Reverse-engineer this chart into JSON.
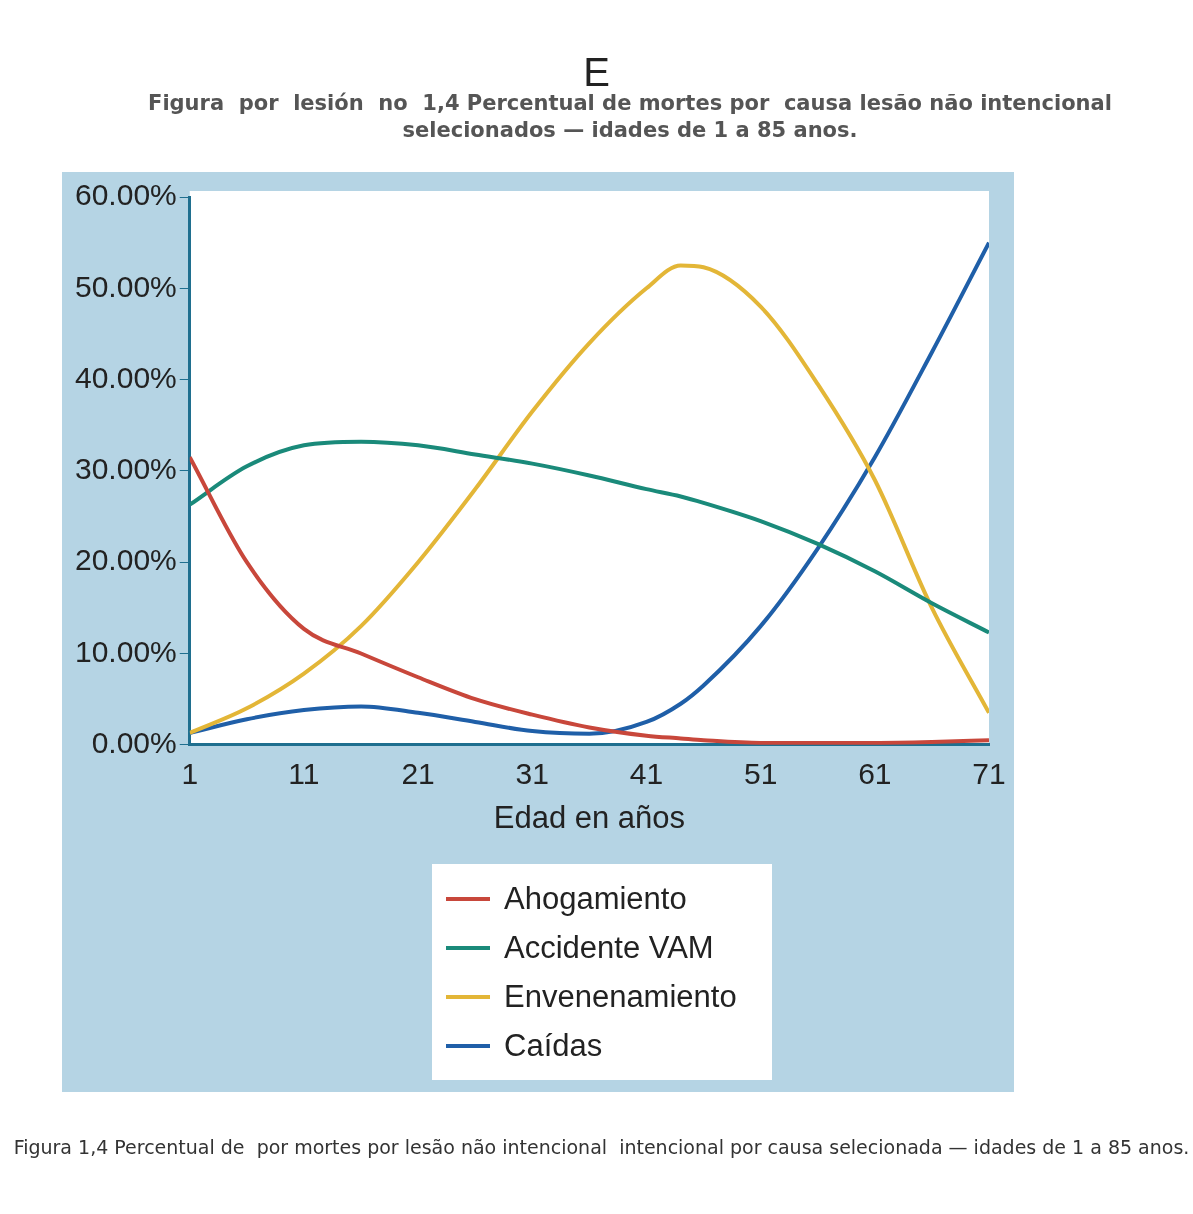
{
  "chart_data": {
    "type": "line",
    "title": "E",
    "subtitle": "Figura  por  lesión  no  1,4 Percentual de mortes por  causa lesão não intencional selecionados — idades de 1 a 85 anos.",
    "xlabel": "Edad en años",
    "annotations": [
      "Figura 1,4 Percentual de  por mortes por lesão não intencional  intencional por causa selecionada — idades de 1 a 85 anos."
    ],
    "x": [
      1,
      6,
      11,
      16,
      21,
      26,
      31,
      36,
      41,
      44,
      46,
      51,
      56,
      61,
      66,
      71
    ],
    "series": [
      {
        "name": "Ahogamiento",
        "color": "#c8473b",
        "values": [
          31.5,
          20,
          12.7,
          10,
          7.4,
          5,
          3.3,
          1.9,
          1,
          0.7,
          0.5,
          0.2,
          0.2,
          0.2,
          0.3,
          0.5
        ]
      },
      {
        "name": "Accidente VAM",
        "color": "#1a8a7a",
        "values": [
          26.3,
          30.5,
          32.8,
          33.2,
          32.8,
          31.8,
          30.8,
          29.5,
          28,
          27.2,
          26.5,
          24.5,
          22,
          19,
          15.5,
          12.3
        ]
      },
      {
        "name": "Envenenamiento",
        "color": "#e3b637",
        "values": [
          1.3,
          4,
          7.8,
          13,
          20,
          28,
          36.5,
          44,
          50,
          52.5,
          52.3,
          48,
          39.5,
          29,
          15,
          3.5
        ]
      },
      {
        "name": "Caídas",
        "color": "#1f5fa8",
        "values": [
          1.3,
          2.8,
          3.8,
          4.2,
          3.5,
          2.5,
          1.5,
          1.2,
          2.5,
          4.5,
          6.5,
          13,
          21.5,
          31.5,
          43,
          55
        ]
      }
    ],
    "xlim": [
      1,
      71
    ],
    "xticks": [
      1,
      11,
      21,
      31,
      41,
      51,
      61,
      71
    ],
    "ylim": [
      0,
      60
    ],
    "yticks": [
      {
        "value": 0,
        "label": "0.00%"
      },
      {
        "value": 10,
        "label": "10.00%"
      },
      {
        "value": 20,
        "label": "20.00%"
      },
      {
        "value": 30,
        "label": "30.00%"
      },
      {
        "value": 40,
        "label": "40.00%"
      },
      {
        "value": 50,
        "label": "50.00%"
      },
      {
        "value": 60,
        "label": "60.00%"
      }
    ],
    "grid": false,
    "legend": "bottom",
    "marker": "none",
    "line_style": "solid"
  }
}
